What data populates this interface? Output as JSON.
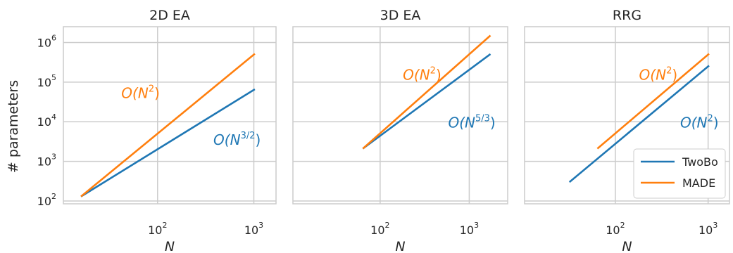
{
  "figure": {
    "ylabel": "# parameters",
    "colors": {
      "TwoBo": "#1f77b4",
      "MADE": "#ff7f0e"
    }
  },
  "legend": {
    "position": "lower-right of third panel",
    "entries": [
      {
        "label": "TwoBo",
        "color": "#1f77b4"
      },
      {
        "label": "MADE",
        "color": "#ff7f0e"
      }
    ]
  },
  "chart_data": [
    {
      "type": "line",
      "title": "2D EA",
      "xlabel": "N",
      "xscale": "log",
      "yscale": "log",
      "xlim": [
        10.5,
        1700
      ],
      "ylim": [
        85,
        2500000
      ],
      "x_ticks": [
        {
          "base": "10",
          "exp": "2",
          "value": 100
        },
        {
          "base": "10",
          "exp": "3",
          "value": 1000
        }
      ],
      "y_ticks": [
        {
          "base": "10",
          "exp": "2",
          "value": 100
        },
        {
          "base": "10",
          "exp": "3",
          "value": 1000
        },
        {
          "base": "10",
          "exp": "4",
          "value": 10000
        },
        {
          "base": "10",
          "exp": "5",
          "value": 100000
        },
        {
          "base": "10",
          "exp": "6",
          "value": 1000000
        }
      ],
      "grid": true,
      "series": [
        {
          "name": "TwoBo",
          "x": [
            16,
            1024
          ],
          "y": [
            130,
            66000
          ]
        },
        {
          "name": "MADE",
          "x": [
            16,
            1024
          ],
          "y": [
            130,
            520000
          ]
        }
      ],
      "annotations": [
        {
          "series": "MADE",
          "text": "O(N",
          "sup": "2",
          "close": ")",
          "x": 42,
          "y": 40000
        },
        {
          "series": "TwoBo",
          "text": "O(N",
          "sup": "3/2",
          "close": ")",
          "x": 380,
          "y": 2600
        }
      ]
    },
    {
      "type": "line",
      "title": "3D EA",
      "xlabel": "N",
      "xscale": "log",
      "yscale": "log",
      "xlim": [
        10.5,
        2700
      ],
      "ylim": [
        85,
        2500000
      ],
      "x_ticks": [
        {
          "base": "10",
          "exp": "2",
          "value": 100
        },
        {
          "base": "10",
          "exp": "3",
          "value": 1000
        }
      ],
      "y_ticks": [],
      "grid": true,
      "series": [
        {
          "name": "TwoBo",
          "x": [
            64,
            1728
          ],
          "y": [
            2100,
            510000
          ]
        },
        {
          "name": "MADE",
          "x": [
            64,
            1728
          ],
          "y": [
            2100,
            1500000
          ]
        }
      ],
      "annotations": [
        {
          "series": "MADE",
          "text": "O(N",
          "sup": "2",
          "close": ")",
          "x": 180,
          "y": 115000
        },
        {
          "series": "TwoBo",
          "text": "O(N",
          "sup": "5/3",
          "close": ")",
          "x": 580,
          "y": 7200
        }
      ]
    },
    {
      "type": "line",
      "title": "RRG",
      "xlabel": "N",
      "xscale": "log",
      "yscale": "log",
      "xlim": [
        10.5,
        1700
      ],
      "ylim": [
        85,
        2500000
      ],
      "x_ticks": [
        {
          "base": "10",
          "exp": "2",
          "value": 100
        },
        {
          "base": "10",
          "exp": "3",
          "value": 1000
        }
      ],
      "y_ticks": [],
      "grid": true,
      "series": [
        {
          "name": "TwoBo",
          "x": [
            32,
            1024
          ],
          "y": [
            300,
            260000
          ]
        },
        {
          "name": "MADE",
          "x": [
            64,
            1024
          ],
          "y": [
            2100,
            520000
          ]
        }
      ],
      "annotations": [
        {
          "series": "MADE",
          "text": "O(N",
          "sup": "2",
          "close": ")",
          "x": 180,
          "y": 115000
        },
        {
          "series": "TwoBo",
          "text": "O(N",
          "sup": "2",
          "close": ")",
          "x": 500,
          "y": 7200
        }
      ]
    }
  ]
}
